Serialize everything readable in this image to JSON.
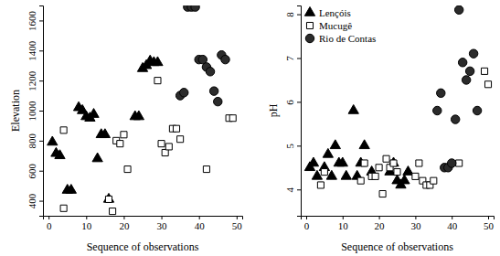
{
  "chart_data": [
    {
      "type": "scatter",
      "x_label": "Sequence of observations",
      "y_label": "Elevation",
      "xlim": [
        -1.5,
        51.5
      ],
      "ylim": [
        300,
        1700
      ],
      "xticks": [
        0,
        10,
        20,
        30,
        40,
        50
      ],
      "yticks": [
        400,
        600,
        800,
        1000,
        1200,
        1400,
        1600
      ],
      "series": [
        {
          "marker": "triangle",
          "color": "#000000",
          "x": [
            1,
            2,
            3,
            5,
            6,
            8,
            9,
            10,
            11,
            12,
            13,
            14,
            15,
            16,
            23,
            24,
            25,
            26,
            27,
            28,
            29
          ],
          "values": [
            790,
            715,
            700,
            470,
            470,
            1020,
            1000,
            960,
            950,
            975,
            680,
            840,
            840,
            410,
            960,
            960,
            1280,
            1300,
            1330,
            1320,
            1320
          ]
        },
        {
          "marker": "square",
          "color": "#ffffff",
          "x": [
            4,
            4,
            16,
            17,
            18,
            19,
            20,
            21,
            29,
            30,
            31,
            32,
            33,
            34,
            35,
            42,
            48,
            49
          ],
          "values": [
            870,
            350,
            410,
            330,
            800,
            780,
            840,
            610,
            1200,
            780,
            720,
            760,
            880,
            880,
            810,
            610,
            950,
            950
          ]
        },
        {
          "marker": "circle",
          "color": "#2b2b2b",
          "x": [
            35,
            36,
            37,
            38,
            39,
            40,
            41,
            42,
            43,
            44,
            45,
            46,
            47
          ],
          "values": [
            1100,
            1120,
            1690,
            1690,
            1690,
            1340,
            1340,
            1290,
            1260,
            1130,
            1060,
            1370,
            1340
          ]
        }
      ]
    },
    {
      "type": "scatter",
      "x_label": "Sequence of observations",
      "y_label": "pH",
      "xlim": [
        -1.5,
        51.5
      ],
      "ylim": [
        3.4,
        8.2
      ],
      "xticks": [
        0,
        10,
        20,
        30,
        40,
        50
      ],
      "yticks": [
        4,
        5,
        6,
        7,
        8
      ],
      "legend": "upper left",
      "series": [
        {
          "name": "Lençóis",
          "marker": "triangle",
          "color": "#000000",
          "x": [
            1,
            2,
            3,
            5,
            6,
            7,
            8,
            9,
            10,
            11,
            13,
            14,
            15,
            16,
            18,
            23,
            24,
            25,
            26,
            27,
            28
          ],
          "values": [
            4.5,
            4.6,
            4.3,
            4.5,
            4.8,
            4.3,
            5.0,
            4.6,
            4.6,
            4.3,
            5.8,
            4.3,
            4.6,
            5.0,
            4.4,
            4.4,
            4.6,
            4.2,
            4.1,
            4.2,
            4.4
          ]
        },
        {
          "name": "Mucugê",
          "marker": "square",
          "color": "#ffffff",
          "x": [
            4,
            5,
            15,
            16,
            18,
            19,
            20,
            21,
            22,
            23,
            24,
            25,
            30,
            31,
            32,
            33,
            34,
            35,
            42,
            49,
            50
          ],
          "values": [
            4.1,
            4.4,
            4.2,
            4.6,
            4.3,
            4.3,
            4.5,
            3.9,
            4.7,
            4.5,
            4.6,
            4.4,
            4.3,
            4.6,
            4.2,
            4.1,
            4.1,
            4.2,
            4.6,
            6.7,
            6.4
          ]
        },
        {
          "name": "Rio de Contas",
          "marker": "circle",
          "color": "#2b2b2b",
          "x": [
            36,
            37,
            38,
            39,
            40,
            41,
            42,
            43,
            44,
            45,
            46,
            47
          ],
          "values": [
            5.8,
            6.2,
            4.5,
            4.5,
            4.6,
            5.6,
            8.1,
            6.9,
            6.5,
            6.7,
            7.1,
            5.8
          ]
        }
      ]
    }
  ]
}
